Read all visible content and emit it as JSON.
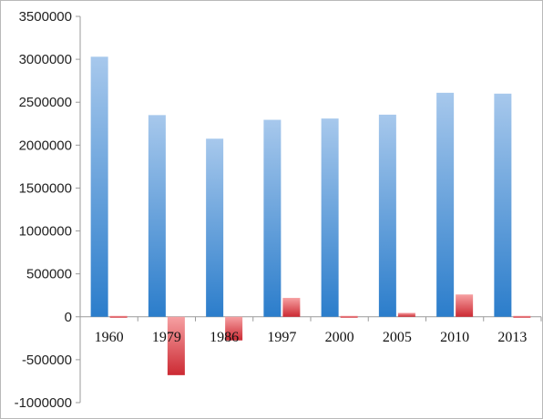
{
  "chart_data": {
    "type": "bar",
    "title": "",
    "xlabel": "",
    "ylabel": "",
    "categories": [
      "1960",
      "1979",
      "1986",
      "1997",
      "2000",
      "2005",
      "2010",
      "2013"
    ],
    "series": [
      {
        "color": "#4a90d9",
        "values": [
          3030000,
          2350000,
          2075000,
          2295000,
          2310000,
          2355000,
          2610000,
          2600000
        ]
      },
      {
        "color": "#d9434a",
        "values": [
          0,
          -680000,
          -275000,
          220000,
          15000,
          45000,
          260000,
          0
        ]
      }
    ],
    "ylim": [
      -1000000,
      3500000
    ],
    "yticks": [
      3500000,
      3000000,
      2500000,
      2000000,
      1500000,
      1000000,
      500000,
      0,
      -500000,
      -1000000
    ],
    "grid": false,
    "legend": "none"
  }
}
